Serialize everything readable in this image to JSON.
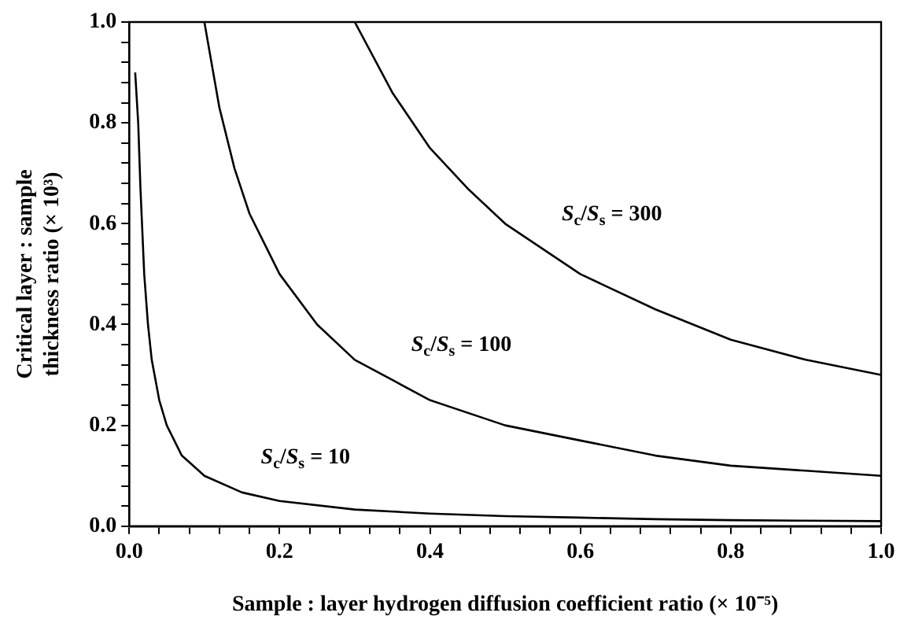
{
  "chart_data": {
    "type": "line",
    "xlabel": "Sample : layer hydrogen diffusion coefficient ratio (× 10⁻⁵)",
    "ylabel": "Critical layer : sample thickness ratio (× 10³)",
    "xlim": [
      0,
      1
    ],
    "ylim": [
      0,
      1
    ],
    "xticks": [
      {
        "value": 0,
        "label": "0.0"
      },
      {
        "value": 0.04,
        "label": null
      },
      {
        "value": 0.08,
        "label": null
      },
      {
        "value": 0.12,
        "label": null
      },
      {
        "value": 0.16,
        "label": null
      },
      {
        "value": 0.2,
        "label": "0.2"
      },
      {
        "value": 0.24,
        "label": null
      },
      {
        "value": 0.28,
        "label": null
      },
      {
        "value": 0.32,
        "label": null
      },
      {
        "value": 0.36,
        "label": null
      },
      {
        "value": 0.4,
        "label": "0.4"
      },
      {
        "value": 0.44,
        "label": null
      },
      {
        "value": 0.48,
        "label": null
      },
      {
        "value": 0.52,
        "label": null
      },
      {
        "value": 0.56,
        "label": null
      },
      {
        "value": 0.6,
        "label": "0.6"
      },
      {
        "value": 0.64,
        "label": null
      },
      {
        "value": 0.68,
        "label": null
      },
      {
        "value": 0.72,
        "label": null
      },
      {
        "value": 0.76,
        "label": null
      },
      {
        "value": 0.8,
        "label": "0.8"
      },
      {
        "value": 0.84,
        "label": null
      },
      {
        "value": 0.88,
        "label": null
      },
      {
        "value": 0.92,
        "label": null
      },
      {
        "value": 0.96,
        "label": null
      },
      {
        "value": 1,
        "label": "1.0"
      }
    ],
    "yticks": [
      {
        "value": 0,
        "label": "0.0"
      },
      {
        "value": 0.04,
        "label": null
      },
      {
        "value": 0.08,
        "label": null
      },
      {
        "value": 0.12,
        "label": null
      },
      {
        "value": 0.16,
        "label": null
      },
      {
        "value": 0.2,
        "label": "0.2"
      },
      {
        "value": 0.24,
        "label": null
      },
      {
        "value": 0.28,
        "label": null
      },
      {
        "value": 0.32,
        "label": null
      },
      {
        "value": 0.36,
        "label": null
      },
      {
        "value": 0.4,
        "label": "0.4"
      },
      {
        "value": 0.44,
        "label": null
      },
      {
        "value": 0.48,
        "label": null
      },
      {
        "value": 0.52,
        "label": null
      },
      {
        "value": 0.56,
        "label": null
      },
      {
        "value": 0.6,
        "label": "0.6"
      },
      {
        "value": 0.64,
        "label": null
      },
      {
        "value": 0.68,
        "label": null
      },
      {
        "value": 0.72,
        "label": null
      },
      {
        "value": 0.76,
        "label": null
      },
      {
        "value": 0.8,
        "label": "0.8"
      },
      {
        "value": 0.84,
        "label": null
      },
      {
        "value": 0.88,
        "label": null
      },
      {
        "value": 0.92,
        "label": null
      },
      {
        "value": 0.96,
        "label": null
      },
      {
        "value": 1,
        "label": "1.0"
      }
    ],
    "grid": false,
    "legend": false,
    "marker": "none",
    "line_style": "solid",
    "series": [
      {
        "name": "S$_{c}$/S$_{s}$ = 10",
        "color": "#000000",
        "x": [
          0.008,
          0.012,
          0.015,
          0.02,
          0.025,
          0.03,
          0.04,
          0.05,
          0.07,
          0.1,
          0.15,
          0.2,
          0.3,
          0.4,
          0.5,
          0.6,
          0.7,
          0.8,
          0.9,
          1.0
        ],
        "values": [
          0.9,
          0.8,
          0.67,
          0.5,
          0.4,
          0.33,
          0.25,
          0.2,
          0.14,
          0.1,
          0.067,
          0.05,
          0.033,
          0.025,
          0.02,
          0.017,
          0.014,
          0.012,
          0.011,
          0.01
        ]
      },
      {
        "name": "S$_{c}$/S$_{s}$ = 100",
        "color": "#000000",
        "x": [
          0.1,
          0.12,
          0.14,
          0.16,
          0.18,
          0.2,
          0.25,
          0.3,
          0.35,
          0.4,
          0.5,
          0.6,
          0.7,
          0.8,
          0.9,
          1.0
        ],
        "values": [
          1.0,
          0.83,
          0.71,
          0.62,
          0.56,
          0.5,
          0.4,
          0.33,
          0.29,
          0.25,
          0.2,
          0.17,
          0.14,
          0.12,
          0.11,
          0.1
        ]
      },
      {
        "name": "S$_{c}$/S$_{s}$ = 300",
        "color": "#000000",
        "x": [
          0.3,
          0.35,
          0.4,
          0.45,
          0.5,
          0.55,
          0.6,
          0.7,
          0.8,
          0.9,
          1.0
        ],
        "values": [
          1.0,
          0.86,
          0.75,
          0.67,
          0.6,
          0.55,
          0.5,
          0.43,
          0.37,
          0.33,
          0.3
        ]
      }
    ]
  }
}
